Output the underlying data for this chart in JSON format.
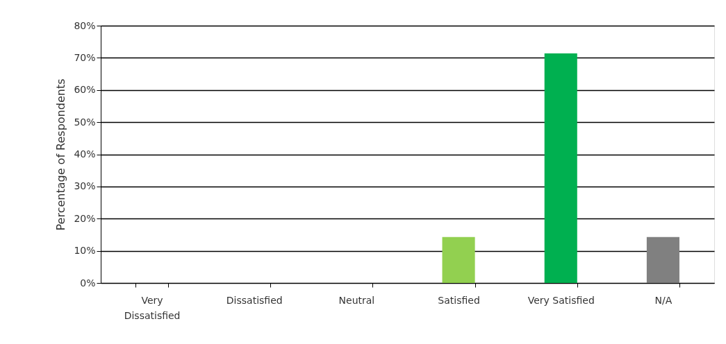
{
  "chart_data": {
    "type": "bar",
    "ylabel": "Percentage of Respondents",
    "categories": [
      "Very Dissatisfied",
      "Dissatisfied",
      "Neutral",
      "Satisfied",
      "Very Satisfied",
      "N/A"
    ],
    "values": [
      0,
      0,
      0,
      14.3,
      71.4,
      14.3
    ],
    "colors": [
      "#92d050",
      "#92d050",
      "#92d050",
      "#92d050",
      "#00b050",
      "#808080"
    ],
    "ylim": [
      0,
      80
    ],
    "yticks": [
      {
        "value": 0,
        "label": "0%"
      },
      {
        "value": 10,
        "label": "10%"
      },
      {
        "value": 20,
        "label": "20%"
      },
      {
        "value": 30,
        "label": "30%"
      },
      {
        "value": 40,
        "label": "40%"
      },
      {
        "value": 50,
        "label": "50%"
      },
      {
        "value": 60,
        "label": "60%"
      },
      {
        "value": 70,
        "label": "70%"
      },
      {
        "value": 80,
        "label": "80%"
      }
    ],
    "grid": "y"
  }
}
